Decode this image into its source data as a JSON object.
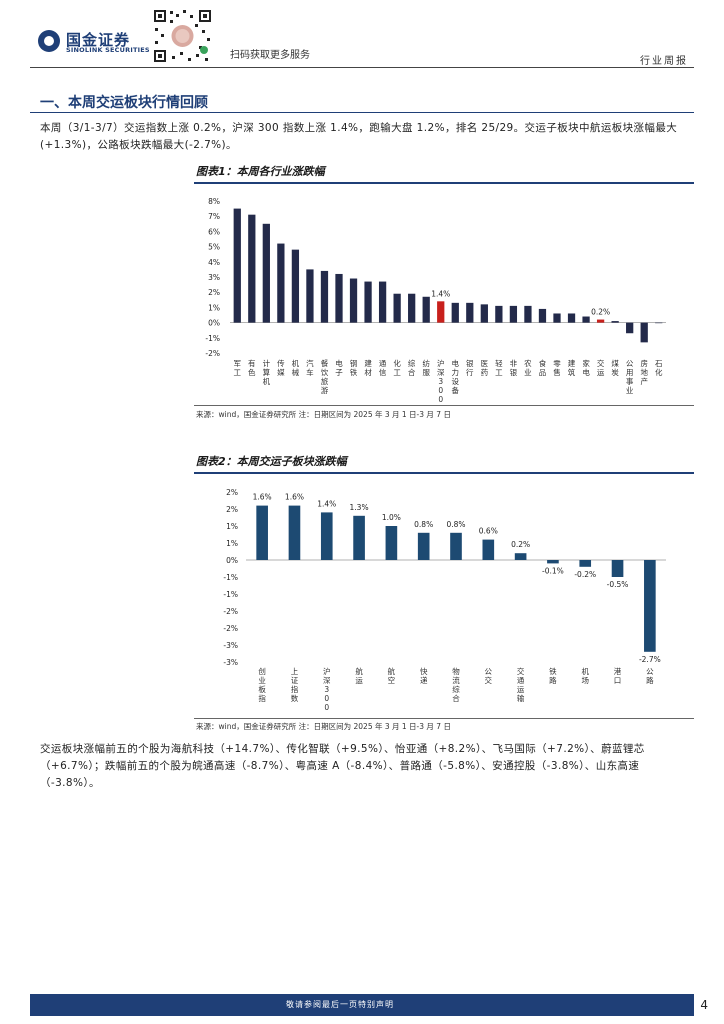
{
  "header": {
    "brand_cn": "国金证券",
    "brand_en": "SINOLINK SECURITIES",
    "scan_text": "扫码获取更多服务",
    "doc_type": "行业周报"
  },
  "section": {
    "title": "一、本周交运板块行情回顾",
    "intro": "本周（3/1-3/7）交运指数上涨 0.2%，沪深 300 指数上涨 1.4%，跑输大盘 1.2%，排名 25/29。交运子板块中航运板块涨幅最大(+1.3%)，公路板块跌幅最大(-2.7%)。"
  },
  "figure1": {
    "title": "图表1：本周各行业涨跌幅",
    "source": "来源：wind，国金证券研究所    注：日期区间为 2025 年 3 月 1 日-3 月 7 日",
    "chart_data": {
      "type": "bar",
      "title": "本周各行业涨跌幅",
      "categories": [
        "军工",
        "有色",
        "计算机",
        "传媒",
        "机械",
        "汽车",
        "餐饮旅游",
        "电子",
        "钢铁",
        "建材",
        "通信",
        "化工",
        "综合",
        "纺服",
        "沪深300",
        "电力设备",
        "银行",
        "医药",
        "轻工",
        "非银",
        "农业",
        "食品",
        "零售",
        "建筑",
        "家电",
        "交运",
        "煤炭",
        "公用事业",
        "房地产",
        "石化"
      ],
      "values": [
        7.5,
        7.1,
        6.5,
        5.2,
        4.8,
        3.5,
        3.4,
        3.2,
        2.9,
        2.7,
        2.7,
        1.9,
        1.9,
        1.7,
        1.4,
        1.3,
        1.3,
        1.2,
        1.1,
        1.1,
        1.1,
        0.9,
        0.6,
        0.6,
        0.4,
        0.2,
        0.1,
        -0.7,
        -1.3,
        0
      ],
      "highlight": [
        "沪深300",
        "交运"
      ],
      "data_labels": {
        "沪深300": "1.4%",
        "交运": "0.2%"
      },
      "yticks": [
        "8%",
        "7%",
        "6%",
        "5%",
        "4%",
        "3%",
        "2%",
        "1%",
        "0%",
        "-1%",
        "-2%"
      ],
      "ylim": [
        -2,
        8
      ],
      "color": "#232a4a",
      "highlight_color": "#c8201c"
    }
  },
  "figure2": {
    "title": "图表2：本周交运子板块涨跌幅",
    "source": "来源：wind，国金证券研究所    注：日期区间为 2025 年 3 月 1 日-3 月 7 日",
    "chart_data": {
      "type": "bar",
      "title": "本周交运子板块涨跌幅",
      "categories": [
        "创业板指",
        "上证指数",
        "沪深300",
        "航运",
        "航空",
        "快递",
        "物流综合",
        "公交",
        "交通运输",
        "铁路",
        "机场",
        "港口",
        "公路"
      ],
      "values": [
        1.6,
        1.6,
        1.4,
        1.3,
        1.0,
        0.8,
        0.8,
        0.6,
        0.2,
        -0.1,
        -0.2,
        -0.5,
        -2.7
      ],
      "labels": [
        "1.6%",
        "1.6%",
        "1.4%",
        "1.3%",
        "1.0%",
        "0.8%",
        "0.8%",
        "0.6%",
        "0.2%",
        "-0.1%",
        "-0.2%",
        "-0.5%",
        "-2.7%"
      ],
      "yticks": [
        "2%",
        "2%",
        "1%",
        "1%",
        "0%",
        "-1%",
        "-1%",
        "-2%",
        "-2%",
        "-3%",
        "-3%"
      ],
      "ylim": [
        -3,
        2
      ],
      "color": "#1d4a72"
    }
  },
  "stocks_text": "交运板块涨幅前五的个股为海航科技（+14.7%）、传化智联（+9.5%）、怡亚通（+8.2%）、飞马国际（+7.2%）、蔚蓝锂芯（+6.7%）；跌幅前五的个股为皖通高速（-8.7%）、粤高速 A（-8.4%）、普路通（-5.8%）、安通控股（-3.8%）、山东高速（-3.8%）。",
  "footer": {
    "note": "敬请参阅最后一页特别声明",
    "page": "4"
  }
}
